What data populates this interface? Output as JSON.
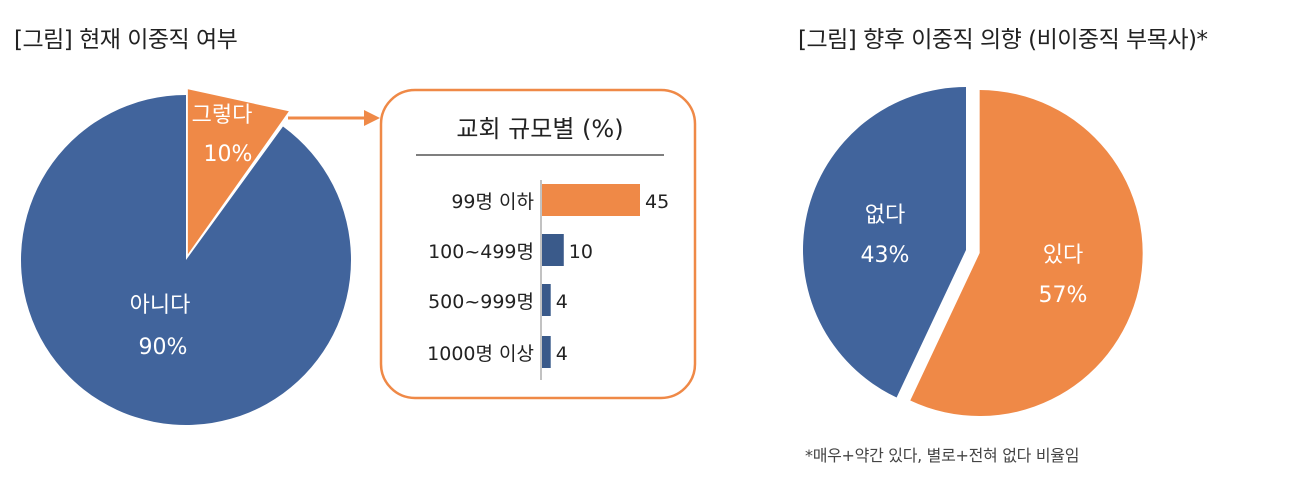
{
  "titles": {
    "left": "[그림] 현재 이중직 여부",
    "right": "[그림] 향후 이중직 의향 (비이중직 부목사)*"
  },
  "footnote": "*매우+약간 있다, 별로+전혀 없다 비율임",
  "colors": {
    "orange": "#EF8947",
    "blue": "#41649C",
    "darkblue": "#3A5A8A",
    "axis": "#999999"
  },
  "chart_data": [
    {
      "type": "pie",
      "title": "[그림] 현재 이중직 여부",
      "slices": [
        {
          "label": "그렇다",
          "pct": "10%",
          "value": 10,
          "color": "#EF8947",
          "explode": true
        },
        {
          "label": "아니다",
          "pct": "90%",
          "value": 90,
          "color": "#41649C",
          "explode": false
        }
      ]
    },
    {
      "type": "bar",
      "orientation": "horizontal",
      "title": "교회 규모별 (%)",
      "categories": [
        "99명 이하",
        "100~499명",
        "500~999명",
        "1000명 이상"
      ],
      "values": [
        45,
        10,
        4,
        4
      ],
      "colors": [
        "#EF8947",
        "#3A5A8A",
        "#3A5A8A",
        "#3A5A8A"
      ],
      "xlim": [
        0,
        45
      ]
    },
    {
      "type": "pie",
      "title": "[그림] 향후 이중직 의향 (비이중직 부목사)*",
      "slices": [
        {
          "label": "있다",
          "pct": "57%",
          "value": 57,
          "color": "#EF8947",
          "explode": true
        },
        {
          "label": "없다",
          "pct": "43%",
          "value": 43,
          "color": "#41649C",
          "explode": false
        }
      ]
    }
  ]
}
